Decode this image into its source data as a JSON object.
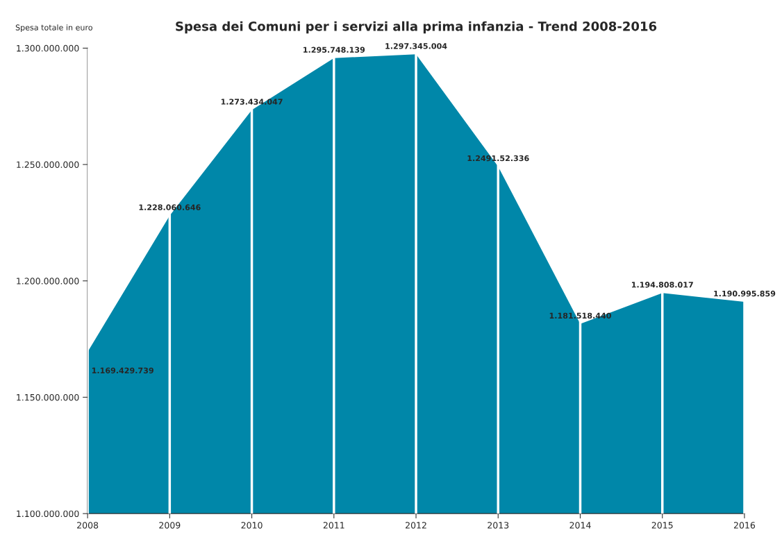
{
  "chart_data": {
    "type": "area",
    "title": "Spesa dei Comuni per i servizi alla prima infanzia - Trend 2008-2016",
    "ylabel": "Spesa totale in euro",
    "x": [
      2008,
      2009,
      2010,
      2011,
      2012,
      2013,
      2014,
      2015,
      2016
    ],
    "series": [
      {
        "color": "#0087a9",
        "values": [
          1169429739,
          1228060646,
          1273434047,
          1295748139,
          1297345004,
          1249152336,
          1181518440,
          1194808017,
          1190995859
        ],
        "value_labels": [
          "1.169.429.739",
          "1.228.060.646",
          "1.273.434.047",
          "1.295.748.139",
          "1.297.345.004",
          "1.2491.52.336",
          "1.181.518.440",
          "1.194.808.017",
          "1.190.995.859"
        ]
      }
    ],
    "xlim": [
      2008,
      2016
    ],
    "xticks": [
      2008,
      2009,
      2010,
      2011,
      2012,
      2013,
      2014,
      2015,
      2016
    ],
    "ylim": [
      1100000000,
      1300000000
    ],
    "yticks": [
      {
        "value": 1100000000,
        "label": "1.100.000.000"
      },
      {
        "value": 1150000000,
        "label": "1.150.000.000"
      },
      {
        "value": 1200000000,
        "label": "1.200.000.000"
      },
      {
        "value": 1250000000,
        "label": "1.250.000.000"
      },
      {
        "value": 1300000000,
        "label": "1.300.000.000"
      }
    ],
    "grid": "x"
  }
}
